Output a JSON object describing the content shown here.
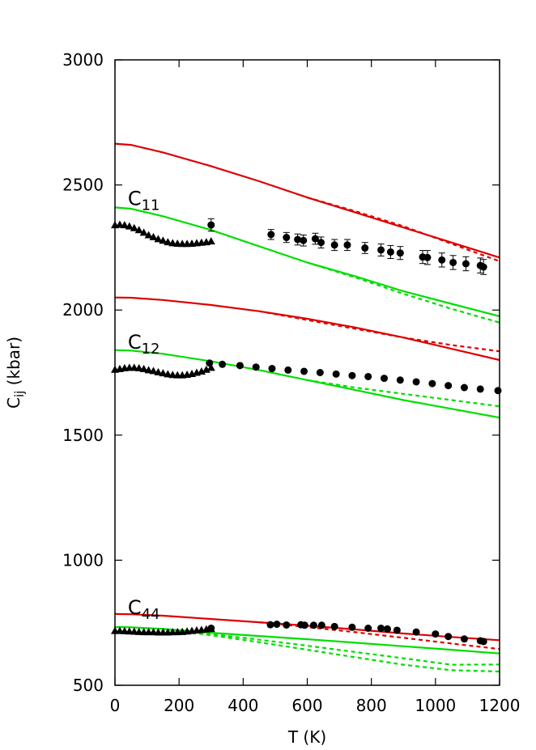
{
  "chart_data": {
    "type": "line",
    "xlabel": "T (K)",
    "ylabel": "C",
    "ylabel_sub": "ij",
    "ylabel_unit": " (kbar)",
    "xlim": [
      0,
      1200
    ],
    "ylim": [
      500,
      3000
    ],
    "xticks": [
      0,
      200,
      400,
      600,
      800,
      1000,
      1200
    ],
    "yticks": [
      500,
      1000,
      1500,
      2000,
      2500,
      3000
    ],
    "grid": false,
    "labels": [
      {
        "text": "C",
        "sub": "11",
        "x": 40,
        "y": 2420
      },
      {
        "text": "C",
        "sub": "12",
        "x": 40,
        "y": 1845
      },
      {
        "text": "C",
        "sub": "44",
        "x": 40,
        "y": 785
      }
    ],
    "series": [
      {
        "style": "solid",
        "color": "#dd0000",
        "group": "C11",
        "x": [
          0,
          50,
          150,
          300,
          450,
          600,
          750,
          900,
          1050,
          1200
        ],
        "values": [
          2665,
          2660,
          2630,
          2575,
          2515,
          2450,
          2390,
          2330,
          2270,
          2210
        ]
      },
      {
        "style": "dotted",
        "color": "#dd0000",
        "group": "C11",
        "x": [
          600,
          750,
          900,
          1050,
          1200
        ],
        "values": [
          2450,
          2395,
          2335,
          2265,
          2195
        ]
      },
      {
        "style": "solid",
        "color": "#00dd00",
        "group": "C11",
        "x": [
          0,
          50,
          150,
          300,
          450,
          600,
          750,
          900,
          1050,
          1200
        ],
        "values": [
          2410,
          2405,
          2375,
          2320,
          2255,
          2190,
          2135,
          2075,
          2025,
          1975
        ]
      },
      {
        "style": "dotted",
        "color": "#00dd00",
        "group": "C11",
        "x": [
          600,
          750,
          900,
          1050,
          1200
        ],
        "values": [
          2190,
          2130,
          2065,
          2005,
          1950
        ]
      },
      {
        "style": "solid",
        "color": "#dd0000",
        "group": "C12",
        "x": [
          0,
          50,
          150,
          300,
          450,
          600,
          750,
          900,
          1050,
          1200
        ],
        "values": [
          2050,
          2049,
          2040,
          2020,
          1995,
          1965,
          1930,
          1890,
          1845,
          1800
        ]
      },
      {
        "style": "dotted",
        "color": "#dd0000",
        "group": "C12",
        "x": [
          450,
          600,
          750,
          900,
          1050,
          1200
        ],
        "values": [
          1995,
          1960,
          1925,
          1890,
          1860,
          1835
        ]
      },
      {
        "style": "solid",
        "color": "#00dd00",
        "group": "C12",
        "x": [
          0,
          50,
          150,
          300,
          450,
          600,
          750,
          900,
          1050,
          1200
        ],
        "values": [
          1840,
          1838,
          1825,
          1795,
          1760,
          1720,
          1680,
          1640,
          1605,
          1570
        ]
      },
      {
        "style": "dotted",
        "color": "#00dd00",
        "group": "C12",
        "x": [
          600,
          750,
          900,
          1050,
          1200
        ],
        "values": [
          1720,
          1690,
          1665,
          1640,
          1615
        ]
      },
      {
        "style": "solid",
        "color": "#dd0000",
        "group": "C44",
        "x": [
          0,
          50,
          150,
          300,
          450,
          600,
          750,
          900,
          1050,
          1200
        ],
        "values": [
          785,
          784,
          778,
          765,
          752,
          738,
          723,
          707,
          693,
          680
        ]
      },
      {
        "style": "dotted",
        "color": "#dd0000",
        "group": "C44",
        "x": [
          450,
          600,
          750,
          900,
          1050,
          1200
        ],
        "values": [
          752,
          733,
          712,
          690,
          667,
          645
        ]
      },
      {
        "style": "solid",
        "color": "#00dd00",
        "group": "C44",
        "x": [
          0,
          50,
          150,
          300,
          450,
          600,
          750,
          900,
          1050,
          1200
        ],
        "values": [
          733,
          732,
          725,
          710,
          697,
          684,
          670,
          656,
          642,
          627
        ]
      },
      {
        "style": "dotted",
        "color": "#00dd00",
        "group": "C44",
        "x": [
          150,
          300,
          450,
          600,
          750,
          900,
          1050,
          1200
        ],
        "values": [
          725,
          705,
          682,
          658,
          633,
          608,
          582,
          583
        ]
      },
      {
        "style": "dotted",
        "color": "#00dd00",
        "group": "C44",
        "x": [
          150,
          300,
          450,
          600,
          750,
          900,
          1050,
          1200
        ],
        "values": [
          725,
          700,
          672,
          642,
          612,
          582,
          560,
          555
        ]
      }
    ],
    "triangles": [
      {
        "x": [
          0,
          15,
          30,
          45,
          60,
          75,
          90,
          105,
          120,
          135,
          150,
          165,
          180,
          195,
          210,
          225,
          240,
          255,
          270,
          285,
          300
        ],
        "values": [
          2340,
          2342,
          2340,
          2335,
          2328,
          2320,
          2310,
          2300,
          2292,
          2284,
          2278,
          2272,
          2268,
          2266,
          2265,
          2265,
          2266,
          2268,
          2270,
          2272,
          2275
        ]
      },
      {
        "x": [
          0,
          15,
          30,
          45,
          60,
          75,
          90,
          105,
          120,
          135,
          150,
          165,
          180,
          195,
          210,
          225,
          240,
          255,
          270,
          285,
          300
        ],
        "values": [
          1762,
          1765,
          1768,
          1770,
          1770,
          1768,
          1765,
          1760,
          1757,
          1752,
          1748,
          1744,
          1741,
          1740,
          1740,
          1742,
          1745,
          1750,
          1755,
          1762,
          1770
        ]
      },
      {
        "x": [
          0,
          15,
          30,
          45,
          60,
          75,
          90,
          105,
          120,
          135,
          150,
          165,
          180,
          195,
          210,
          225,
          240,
          255,
          270,
          285,
          300
        ],
        "values": [
          718,
          718,
          717,
          716,
          715,
          714,
          713,
          713,
          713,
          712,
          712,
          712,
          713,
          713,
          714,
          716,
          718,
          720,
          722,
          724,
          726
        ]
      }
    ],
    "circles_c11": {
      "x": [
        300,
        487,
        535,
        570,
        588,
        625,
        643,
        685,
        725,
        780,
        830,
        860,
        890,
        960,
        975,
        1020,
        1055,
        1095,
        1140,
        1150
      ],
      "values": [
        2340,
        2302,
        2290,
        2282,
        2278,
        2285,
        2270,
        2260,
        2260,
        2248,
        2240,
        2232,
        2228,
        2212,
        2210,
        2200,
        2190,
        2185,
        2178,
        2172
      ],
      "err": [
        25,
        20,
        20,
        22,
        22,
        22,
        22,
        22,
        22,
        22,
        24,
        26,
        26,
        26,
        28,
        28,
        28,
        28,
        30,
        30
      ]
    },
    "circles_c12": {
      "x": [
        295,
        335,
        390,
        440,
        490,
        540,
        590,
        640,
        690,
        740,
        790,
        840,
        890,
        940,
        990,
        1040,
        1090,
        1140,
        1195
      ],
      "values": [
        1788,
        1783,
        1778,
        1772,
        1766,
        1760,
        1755,
        1750,
        1744,
        1738,
        1734,
        1727,
        1720,
        1713,
        1706,
        1698,
        1690,
        1684,
        1678
      ]
    },
    "circles_c44": {
      "x": [
        300,
        485,
        505,
        535,
        580,
        592,
        620,
        645,
        685,
        740,
        790,
        830,
        850,
        880,
        940,
        1000,
        1040,
        1090,
        1140,
        1150
      ],
      "values": [
        728,
        742,
        744,
        741,
        742,
        740,
        740,
        740,
        735,
        732,
        728,
        728,
        725,
        720,
        713,
        705,
        695,
        685,
        678,
        675
      ]
    }
  }
}
